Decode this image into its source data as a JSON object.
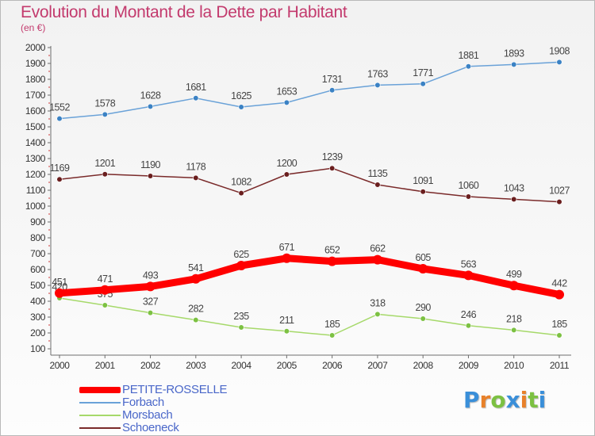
{
  "header": {
    "title": "Evolution du Montant de la Dette par Habitant",
    "subtitle": "(en €)"
  },
  "logo": {
    "text": "Proxiti",
    "colors": [
      "#3a8fd9",
      "#e8812a",
      "#7cc142",
      "#3a8fd9",
      "#e8812a",
      "#7cc142",
      "#3a8fd9"
    ]
  },
  "chart_data": {
    "type": "line",
    "title": "Evolution du Montant de la Dette par Habitant",
    "subtitle": "(en €)",
    "xlabel": "",
    "ylabel": "",
    "ylim": [
      100,
      2000
    ],
    "yticks": [
      100,
      200,
      300,
      400,
      500,
      600,
      700,
      800,
      900,
      1000,
      1100,
      1200,
      1300,
      1400,
      1500,
      1600,
      1700,
      1800,
      1900,
      2000
    ],
    "grid": false,
    "legend_position": "bottom-left",
    "categories": [
      "2000",
      "2001",
      "2002",
      "2003",
      "2004",
      "2005",
      "2006",
      "2007",
      "2008",
      "2009",
      "2010",
      "2011"
    ],
    "series": [
      {
        "name": "Forbach",
        "color": "#6aa2d8",
        "point_color": "#3b82c4",
        "values": [
          1552,
          1578,
          1628,
          1681,
          1625,
          1653,
          1731,
          1763,
          1771,
          1881,
          1893,
          1908
        ]
      },
      {
        "name": "Schoeneck",
        "color": "#7a2a2a",
        "point_color": "#6a1e1e",
        "values": [
          1169,
          1201,
          1190,
          1178,
          1082,
          1200,
          1239,
          1135,
          1091,
          1060,
          1043,
          1027
        ]
      },
      {
        "name": "PETITE-ROSSELLE",
        "color": "#ff0000",
        "point_color": "#ff0000",
        "values": [
          451,
          471,
          493,
          541,
          625,
          671,
          652,
          662,
          605,
          563,
          499,
          442
        ]
      },
      {
        "name": "Morsbach",
        "color": "#a6d96a",
        "point_color": "#7cc142",
        "values": [
          420,
          375,
          327,
          282,
          235,
          211,
          185,
          318,
          290,
          246,
          218,
          185
        ]
      }
    ],
    "legend": [
      "PETITE-ROSSELLE",
      "Forbach",
      "Morsbach",
      "Schoeneck"
    ]
  }
}
